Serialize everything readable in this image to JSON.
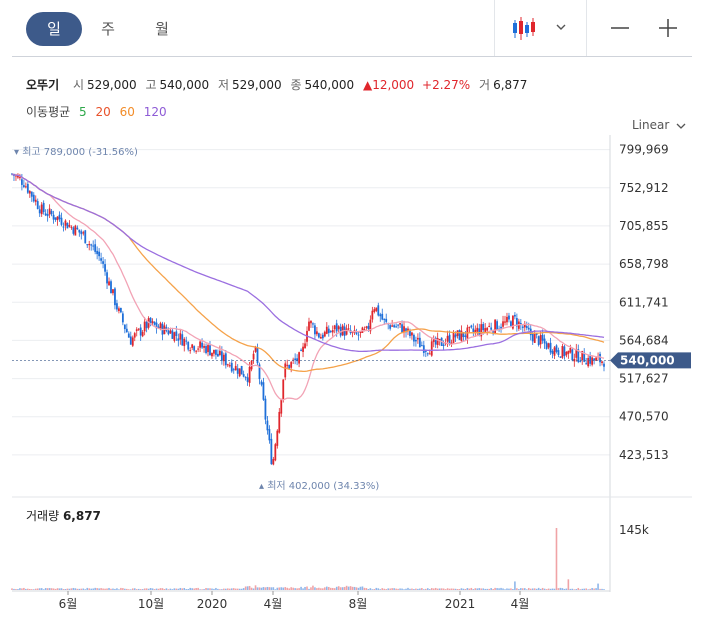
{
  "toolbar": {
    "tabs": [
      "일",
      "주",
      "월"
    ],
    "active_tab": "일",
    "chart_style_icon": "candlestick-icon",
    "dropdown_icon": "chevron-down-icon",
    "zoom_out_icon": "minus-icon",
    "zoom_in_icon": "plus-icon"
  },
  "stock": {
    "name": "오뚜기",
    "open_label": "시",
    "open": "529,000",
    "high_label": "고",
    "high": "540,000",
    "low_label": "저",
    "low": "529,000",
    "close_label": "종",
    "close": "540,000",
    "change": "12,000",
    "change_pct": "+2.27%",
    "volume_label": "거",
    "volume": "6,877"
  },
  "moving_average": {
    "label": "이동평균",
    "periods": [
      "5",
      "20",
      "60",
      "120"
    ],
    "colors": {
      "5": "#2ea84a",
      "20": "#e8522b",
      "60": "#f28c28",
      "120": "#8e5bd6"
    }
  },
  "scale_mode": "Linear",
  "annotations": {
    "high": "최고 789,000 (-31.56%)",
    "low": "최저 402,000 (34.33%)"
  },
  "current_price_tag": "540,000",
  "volume_panel": {
    "title": "거래량",
    "value": "6,877",
    "axis_label": "145k"
  },
  "colors": {
    "accent": "#3d5a8a",
    "up": "#e0262c",
    "down": "#1e6fd9",
    "annotation": "#6e85ad"
  },
  "chart_data": {
    "type": "candlestick",
    "y_ticks": [
      "799,969",
      "752,912",
      "705,855",
      "658,798",
      "611,741",
      "564,684",
      "517,627",
      "470,570",
      "423,513"
    ],
    "y_tick_values": [
      799969,
      752912,
      705855,
      658798,
      611741,
      564684,
      517627,
      470570,
      423513
    ],
    "x_ticks": [
      "6월",
      "10월",
      "2020",
      "4월",
      "8월",
      "2021",
      "4월"
    ],
    "ylim": [
      395000,
      818000
    ],
    "price_path": [
      [
        0,
        770000
      ],
      [
        0.02,
        760000
      ],
      [
        0.05,
        725000
      ],
      [
        0.08,
        715000
      ],
      [
        0.12,
        695000
      ],
      [
        0.15,
        665000
      ],
      [
        0.18,
        600000
      ],
      [
        0.2,
        565000
      ],
      [
        0.23,
        585000
      ],
      [
        0.27,
        575000
      ],
      [
        0.3,
        560000
      ],
      [
        0.33,
        555000
      ],
      [
        0.36,
        540000
      ],
      [
        0.38,
        530000
      ],
      [
        0.4,
        520000
      ],
      [
        0.41,
        555000
      ],
      [
        0.42,
        510000
      ],
      [
        0.44,
        410000
      ],
      [
        0.45,
        470000
      ],
      [
        0.46,
        530000
      ],
      [
        0.49,
        545000
      ],
      [
        0.5,
        590000
      ],
      [
        0.52,
        570000
      ],
      [
        0.55,
        580000
      ],
      [
        0.58,
        570000
      ],
      [
        0.6,
        575000
      ],
      [
        0.61,
        610000
      ],
      [
        0.63,
        585000
      ],
      [
        0.66,
        580000
      ],
      [
        0.68,
        565000
      ],
      [
        0.7,
        555000
      ],
      [
        0.72,
        560000
      ],
      [
        0.75,
        570000
      ],
      [
        0.78,
        575000
      ],
      [
        0.8,
        580000
      ],
      [
        0.83,
        585000
      ],
      [
        0.85,
        590000
      ],
      [
        0.87,
        575000
      ],
      [
        0.9,
        560000
      ],
      [
        0.93,
        550000
      ],
      [
        0.96,
        545000
      ],
      [
        0.98,
        540000
      ],
      [
        1,
        540000
      ]
    ],
    "volume_spikes": [
      [
        0.85,
        20000
      ],
      [
        0.92,
        145000
      ],
      [
        0.94,
        25000
      ],
      [
        0.99,
        15000
      ]
    ]
  }
}
